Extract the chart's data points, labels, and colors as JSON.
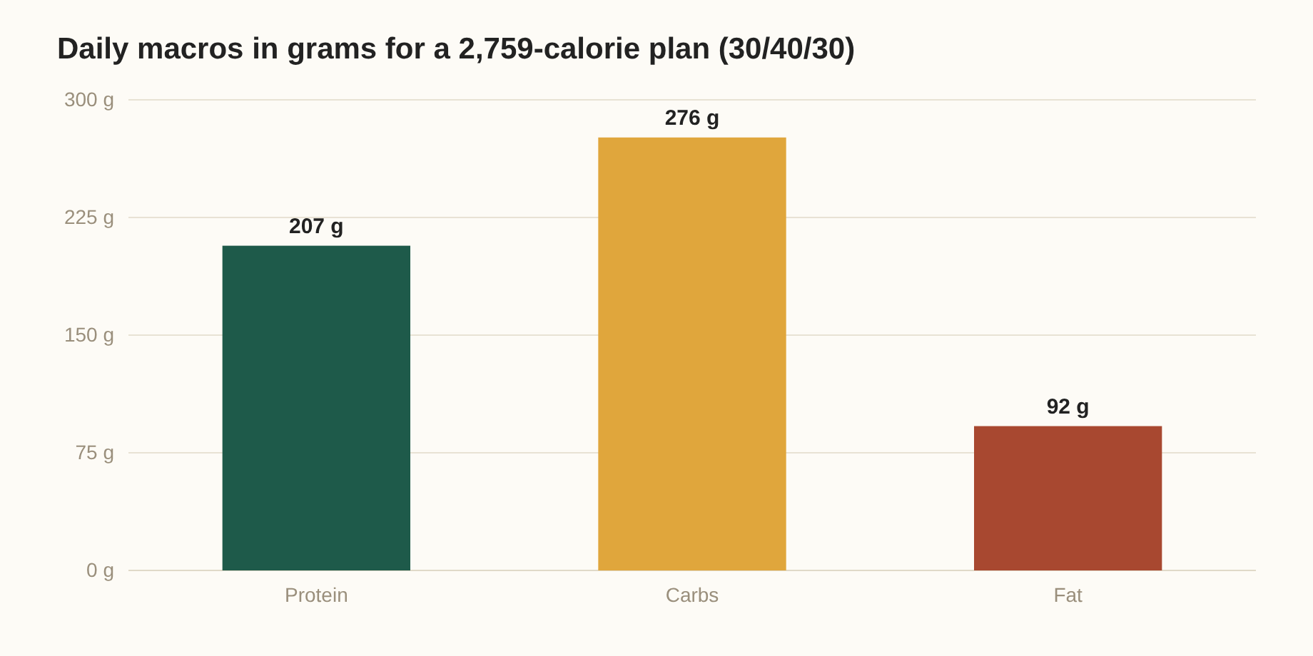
{
  "chart_data": {
    "type": "bar",
    "title": "Daily macros in grams for a 2,759-calorie plan (30/40/30)",
    "categories": [
      "Protein",
      "Carbs",
      "Fat"
    ],
    "values": [
      207,
      276,
      92
    ],
    "colors": [
      "#1e5a4a",
      "#e0a63c",
      "#a84830"
    ],
    "value_labels": [
      "207 g",
      "276 g",
      "92 g"
    ],
    "ylim": [
      0,
      300
    ],
    "yticks": [
      {
        "value": 0,
        "label": "0 g"
      },
      {
        "value": 75,
        "label": "75 g"
      },
      {
        "value": 150,
        "label": "150 g"
      },
      {
        "value": 225,
        "label": "225 g"
      },
      {
        "value": 300,
        "label": "300 g"
      }
    ],
    "grid": "y"
  }
}
